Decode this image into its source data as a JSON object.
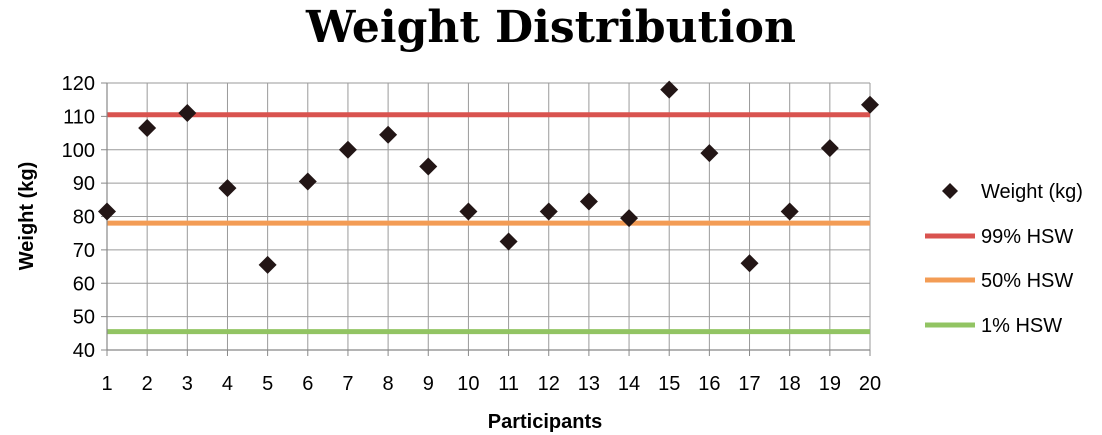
{
  "chart_data": {
    "type": "scatter",
    "title": "Weight Distribution",
    "xlabel": "Participants",
    "ylabel": "Weight (kg)",
    "x": [
      1,
      2,
      3,
      4,
      5,
      6,
      7,
      8,
      9,
      10,
      11,
      12,
      13,
      14,
      15,
      16,
      17,
      18,
      19,
      20
    ],
    "xlim": [
      1,
      20
    ],
    "ylim": [
      40,
      120
    ],
    "y_ticks": [
      40,
      50,
      60,
      70,
      80,
      90,
      100,
      110,
      120
    ],
    "grid": true,
    "legend_position": "right",
    "series": [
      {
        "name": "Weight (kg)",
        "kind": "scatter",
        "marker": "diamond",
        "color": "#231616",
        "values": [
          81.5,
          106.5,
          111,
          88.5,
          65.5,
          90.5,
          100,
          104.5,
          95,
          81.5,
          72.5,
          81.5,
          84.5,
          79.5,
          118,
          99,
          66,
          81.5,
          100.5,
          113.5
        ]
      },
      {
        "name": "99% HSW",
        "kind": "hline",
        "value": 110.5,
        "color": "#d9534f"
      },
      {
        "name": "50% HSW",
        "kind": "hline",
        "value": 78,
        "color": "#f39c55"
      },
      {
        "name": "1% HSW",
        "kind": "hline",
        "value": 45.5,
        "color": "#92c463"
      }
    ]
  }
}
